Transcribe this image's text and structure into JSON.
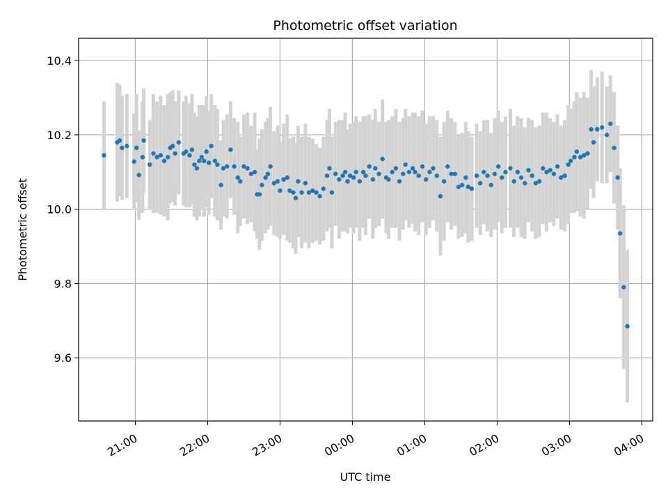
{
  "chart_data": {
    "type": "scatter",
    "title": "Photometric offset variation",
    "xlabel": "UTC time",
    "ylabel": "Photometric offset",
    "x_axis": {
      "kind": "time",
      "ticks": [
        "21:00",
        "22:00",
        "23:00",
        "00:00",
        "01:00",
        "02:00",
        "03:00",
        "04:00"
      ],
      "xlim": [
        "20:13",
        "04:09"
      ]
    },
    "ylim": [
      9.43,
      10.46
    ],
    "yticks": [
      9.6,
      9.8,
      10.0,
      10.2,
      10.4
    ],
    "ytick_labels": [
      "9.6",
      "9.8",
      "10.0",
      "10.2",
      "10.4"
    ],
    "grid": true,
    "colors": {
      "point": "#1f77b4",
      "errorbar": "#d3d3d3",
      "grid": "#b0b0b0"
    },
    "series": [
      {
        "points": [
          [
            "20:34",
            10.145,
            0.145
          ],
          [
            "20:45",
            10.18,
            0.16
          ],
          [
            "20:47",
            10.185,
            0.15
          ],
          [
            "20:49",
            10.165,
            0.14
          ],
          [
            "20:53",
            10.17,
            0.14
          ],
          [
            "20:59",
            10.128,
            0.13
          ],
          [
            "21:01",
            10.165,
            0.145
          ],
          [
            "21:03",
            10.092,
            0.12
          ],
          [
            "21:06",
            10.14,
            0.15
          ],
          [
            "21:07",
            10.185,
            0.14
          ],
          [
            "21:12",
            10.12,
            0.12
          ],
          [
            "21:15",
            10.15,
            0.16
          ],
          [
            "21:18",
            10.14,
            0.15
          ],
          [
            "21:21",
            10.145,
            0.16
          ],
          [
            "21:24",
            10.13,
            0.15
          ],
          [
            "21:27",
            10.14,
            0.17
          ],
          [
            "21:29",
            10.165,
            0.15
          ],
          [
            "21:31",
            10.17,
            0.15
          ],
          [
            "21:33",
            10.15,
            0.14
          ],
          [
            "21:36",
            10.18,
            0.14
          ],
          [
            "21:40",
            10.15,
            0.14
          ],
          [
            "21:42",
            10.155,
            0.15
          ],
          [
            "21:45",
            10.145,
            0.14
          ],
          [
            "21:47",
            10.16,
            0.15
          ],
          [
            "21:49",
            10.12,
            0.14
          ],
          [
            "21:51",
            10.11,
            0.14
          ],
          [
            "21:53",
            10.13,
            0.15
          ],
          [
            "21:55",
            10.14,
            0.14
          ],
          [
            "21:57",
            10.13,
            0.15
          ],
          [
            "21:59",
            10.155,
            0.15
          ],
          [
            "22:01",
            10.125,
            0.14
          ],
          [
            "22:03",
            10.17,
            0.14
          ],
          [
            "22:06",
            10.13,
            0.15
          ],
          [
            "22:08",
            10.12,
            0.15
          ],
          [
            "22:11",
            10.065,
            0.12
          ],
          [
            "22:13",
            10.11,
            0.13
          ],
          [
            "22:16",
            10.115,
            0.14
          ],
          [
            "22:19",
            10.16,
            0.13
          ],
          [
            "22:22",
            10.115,
            0.13
          ],
          [
            "22:25",
            10.085,
            0.15
          ],
          [
            "22:27",
            10.075,
            0.12
          ],
          [
            "22:30",
            10.115,
            0.14
          ],
          [
            "22:33",
            10.11,
            0.15
          ],
          [
            "22:36",
            10.095,
            0.13
          ],
          [
            "22:39",
            10.1,
            0.16
          ],
          [
            "22:41",
            10.04,
            0.12
          ],
          [
            "22:43",
            10.04,
            0.15
          ],
          [
            "22:45",
            10.065,
            0.15
          ],
          [
            "22:48",
            10.085,
            0.15
          ],
          [
            "22:50",
            10.095,
            0.15
          ],
          [
            "22:52",
            10.115,
            0.16
          ],
          [
            "22:55",
            10.07,
            0.14
          ],
          [
            "22:58",
            10.075,
            0.15
          ],
          [
            "23:00",
            10.05,
            0.13
          ],
          [
            "23:03",
            10.08,
            0.15
          ],
          [
            "23:06",
            10.085,
            0.17
          ],
          [
            "23:08",
            10.05,
            0.14
          ],
          [
            "23:11",
            10.045,
            0.15
          ],
          [
            "23:13",
            10.03,
            0.15
          ],
          [
            "23:15",
            10.075,
            0.15
          ],
          [
            "23:18",
            10.045,
            0.15
          ],
          [
            "23:21",
            10.07,
            0.16
          ],
          [
            "23:24",
            10.045,
            0.15
          ],
          [
            "23:27",
            10.05,
            0.14
          ],
          [
            "23:30",
            10.045,
            0.13
          ],
          [
            "23:33",
            10.035,
            0.13
          ],
          [
            "23:36",
            10.055,
            0.14
          ],
          [
            "23:39",
            10.09,
            0.15
          ],
          [
            "23:41",
            10.11,
            0.16
          ],
          [
            "23:43",
            10.045,
            0.15
          ],
          [
            "23:46",
            10.095,
            0.14
          ],
          [
            "23:49",
            10.08,
            0.16
          ],
          [
            "23:52",
            10.09,
            0.15
          ],
          [
            "23:54",
            10.1,
            0.16
          ],
          [
            "23:56",
            10.075,
            0.14
          ],
          [
            "23:58",
            10.09,
            0.14
          ],
          [
            "00:01",
            10.085,
            0.15
          ],
          [
            "00:03",
            10.1,
            0.15
          ],
          [
            "00:06",
            10.075,
            0.16
          ],
          [
            "00:09",
            10.1,
            0.15
          ],
          [
            "00:11",
            10.09,
            0.16
          ],
          [
            "00:14",
            10.115,
            0.14
          ],
          [
            "00:17",
            10.08,
            0.16
          ],
          [
            "00:19",
            10.11,
            0.16
          ],
          [
            "00:22",
            10.095,
            0.14
          ],
          [
            "00:25",
            10.135,
            0.16
          ],
          [
            "00:28",
            10.085,
            0.15
          ],
          [
            "00:30",
            10.08,
            0.16
          ],
          [
            "00:33",
            10.1,
            0.15
          ],
          [
            "00:36",
            10.11,
            0.16
          ],
          [
            "00:39",
            10.075,
            0.16
          ],
          [
            "00:42",
            10.095,
            0.15
          ],
          [
            "00:44",
            10.12,
            0.15
          ],
          [
            "00:47",
            10.1,
            0.15
          ],
          [
            "00:50",
            10.11,
            0.15
          ],
          [
            "00:52",
            10.1,
            0.16
          ],
          [
            "00:55",
            10.09,
            0.16
          ],
          [
            "00:58",
            10.115,
            0.15
          ],
          [
            "01:01",
            10.08,
            0.15
          ],
          [
            "01:04",
            10.1,
            0.15
          ],
          [
            "01:07",
            10.11,
            0.14
          ],
          [
            "01:10",
            10.09,
            0.15
          ],
          [
            "01:13",
            10.035,
            0.16
          ],
          [
            "01:16",
            10.075,
            0.16
          ],
          [
            "01:19",
            10.115,
            0.15
          ],
          [
            "01:22",
            10.095,
            0.15
          ],
          [
            "01:25",
            10.095,
            0.14
          ],
          [
            "01:28",
            10.06,
            0.14
          ],
          [
            "01:31",
            10.065,
            0.14
          ],
          [
            "01:34",
            10.085,
            0.15
          ],
          [
            "01:36",
            10.06,
            0.15
          ],
          [
            "01:39",
            10.055,
            0.14
          ],
          [
            "01:43",
            10.09,
            0.14
          ],
          [
            "01:46",
            10.07,
            0.14
          ],
          [
            "01:49",
            10.1,
            0.14
          ],
          [
            "01:52",
            10.09,
            0.15
          ],
          [
            "01:55",
            10.065,
            0.14
          ],
          [
            "01:58",
            10.095,
            0.15
          ],
          [
            "02:01",
            10.115,
            0.15
          ],
          [
            "02:04",
            10.085,
            0.15
          ],
          [
            "02:07",
            10.1,
            0.15
          ],
          [
            "02:11",
            10.11,
            0.16
          ],
          [
            "02:14",
            10.075,
            0.15
          ],
          [
            "02:17",
            10.1,
            0.15
          ],
          [
            "02:20",
            10.085,
            0.16
          ],
          [
            "02:23",
            10.07,
            0.15
          ],
          [
            "02:26",
            10.105,
            0.14
          ],
          [
            "02:29",
            10.09,
            0.15
          ],
          [
            "02:32",
            10.07,
            0.15
          ],
          [
            "02:35",
            10.075,
            0.15
          ],
          [
            "02:38",
            10.11,
            0.15
          ],
          [
            "02:41",
            10.1,
            0.16
          ],
          [
            "02:44",
            10.105,
            0.14
          ],
          [
            "02:47",
            10.095,
            0.14
          ],
          [
            "02:50",
            10.115,
            0.14
          ],
          [
            "02:53",
            10.085,
            0.14
          ],
          [
            "02:56",
            10.09,
            0.15
          ],
          [
            "02:59",
            10.12,
            0.16
          ],
          [
            "03:01",
            10.13,
            0.14
          ],
          [
            "03:04",
            10.14,
            0.15
          ],
          [
            "03:06",
            10.155,
            0.16
          ],
          [
            "03:09",
            10.14,
            0.16
          ],
          [
            "03:12",
            10.145,
            0.17
          ],
          [
            "03:15",
            10.15,
            0.15
          ],
          [
            "03:18",
            10.215,
            0.16
          ],
          [
            "03:20",
            10.18,
            0.15
          ],
          [
            "03:23",
            10.215,
            0.14
          ],
          [
            "03:27",
            10.22,
            0.15
          ],
          [
            "03:31",
            10.2,
            0.13
          ],
          [
            "03:34",
            10.23,
            0.13
          ],
          [
            "03:37",
            10.165,
            0.15
          ],
          [
            "03:40",
            10.085,
            0.14
          ],
          [
            "03:42",
            9.935,
            0.175
          ],
          [
            "03:45",
            9.79,
            0.22
          ],
          [
            "03:48",
            9.685,
            0.205
          ]
        ]
      }
    ]
  }
}
